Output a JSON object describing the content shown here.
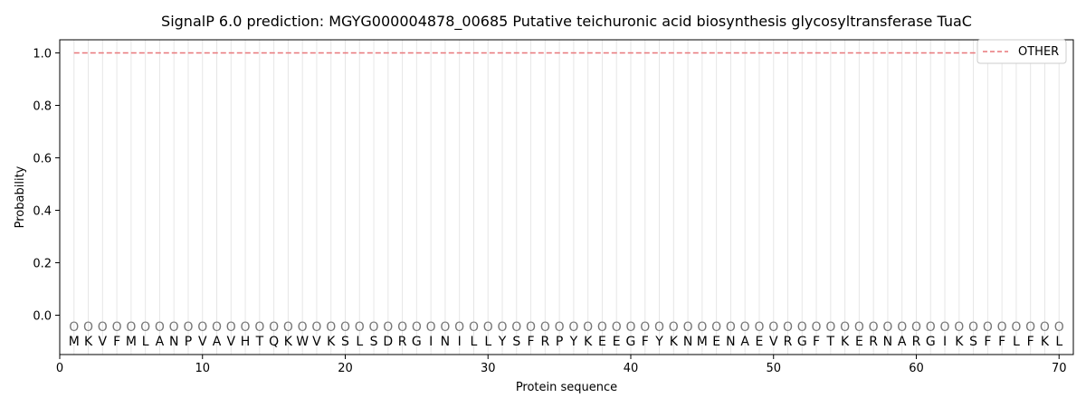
{
  "chart_data": {
    "type": "line",
    "title": "SignalP 6.0 prediction: MGYG000004878_00685 Putative teichuronic acid biosynthesis glycosyltransferase TuaC",
    "xlabel": "Protein sequence",
    "ylabel": "Probability",
    "xlim": [
      0,
      71
    ],
    "ylim": [
      -0.15,
      1.05
    ],
    "xticks": [
      0,
      10,
      20,
      30,
      40,
      50,
      60,
      70
    ],
    "yticks": [
      0.0,
      0.2,
      0.4,
      0.6,
      0.8,
      1.0
    ],
    "ytick_labels": [
      "0.0",
      "0.2",
      "0.4",
      "0.6",
      "0.8",
      "1.0"
    ],
    "legend_position": "top-right",
    "sequence": [
      "M",
      "K",
      "V",
      "F",
      "M",
      "L",
      "A",
      "N",
      "P",
      "V",
      "A",
      "V",
      "H",
      "T",
      "Q",
      "K",
      "W",
      "V",
      "K",
      "S",
      "L",
      "S",
      "D",
      "R",
      "G",
      "I",
      "N",
      "I",
      "L",
      "L",
      "Y",
      "S",
      "F",
      "R",
      "P",
      "Y",
      "K",
      "E",
      "E",
      "G",
      "F",
      "Y",
      "K",
      "N",
      "M",
      "E",
      "N",
      "A",
      "E",
      "V",
      "R",
      "G",
      "F",
      "T",
      "K",
      "E",
      "R",
      "N",
      "A",
      "R",
      "G",
      "I",
      "K",
      "S",
      "F",
      "F",
      "L",
      "F",
      "K",
      "L"
    ],
    "predicted_labels": [
      "O",
      "O",
      "O",
      "O",
      "O",
      "O",
      "O",
      "O",
      "O",
      "O",
      "O",
      "O",
      "O",
      "O",
      "O",
      "O",
      "O",
      "O",
      "O",
      "O",
      "O",
      "O",
      "O",
      "O",
      "O",
      "O",
      "O",
      "O",
      "O",
      "O",
      "O",
      "O",
      "O",
      "O",
      "O",
      "O",
      "O",
      "O",
      "O",
      "O",
      "O",
      "O",
      "O",
      "O",
      "O",
      "O",
      "O",
      "O",
      "O",
      "O",
      "O",
      "O",
      "O",
      "O",
      "O",
      "O",
      "O",
      "O",
      "O",
      "O",
      "O",
      "O",
      "O",
      "O",
      "O",
      "O",
      "O",
      "O",
      "O",
      "O"
    ],
    "series": [
      {
        "name": "OTHER",
        "color": "#e8777a",
        "style": "dashed",
        "x_start": 1,
        "x_end": 70,
        "values": [
          1,
          1,
          1,
          1,
          1,
          1,
          1,
          1,
          1,
          1,
          1,
          1,
          1,
          1,
          1,
          1,
          1,
          1,
          1,
          1,
          1,
          1,
          1,
          1,
          1,
          1,
          1,
          1,
          1,
          1,
          1,
          1,
          1,
          1,
          1,
          1,
          1,
          1,
          1,
          1,
          1,
          1,
          1,
          1,
          1,
          1,
          1,
          1,
          1,
          1,
          1,
          1,
          1,
          1,
          1,
          1,
          1,
          1,
          1,
          1,
          1,
          1,
          1,
          1,
          1,
          1,
          1,
          1,
          1,
          1
        ]
      }
    ]
  }
}
